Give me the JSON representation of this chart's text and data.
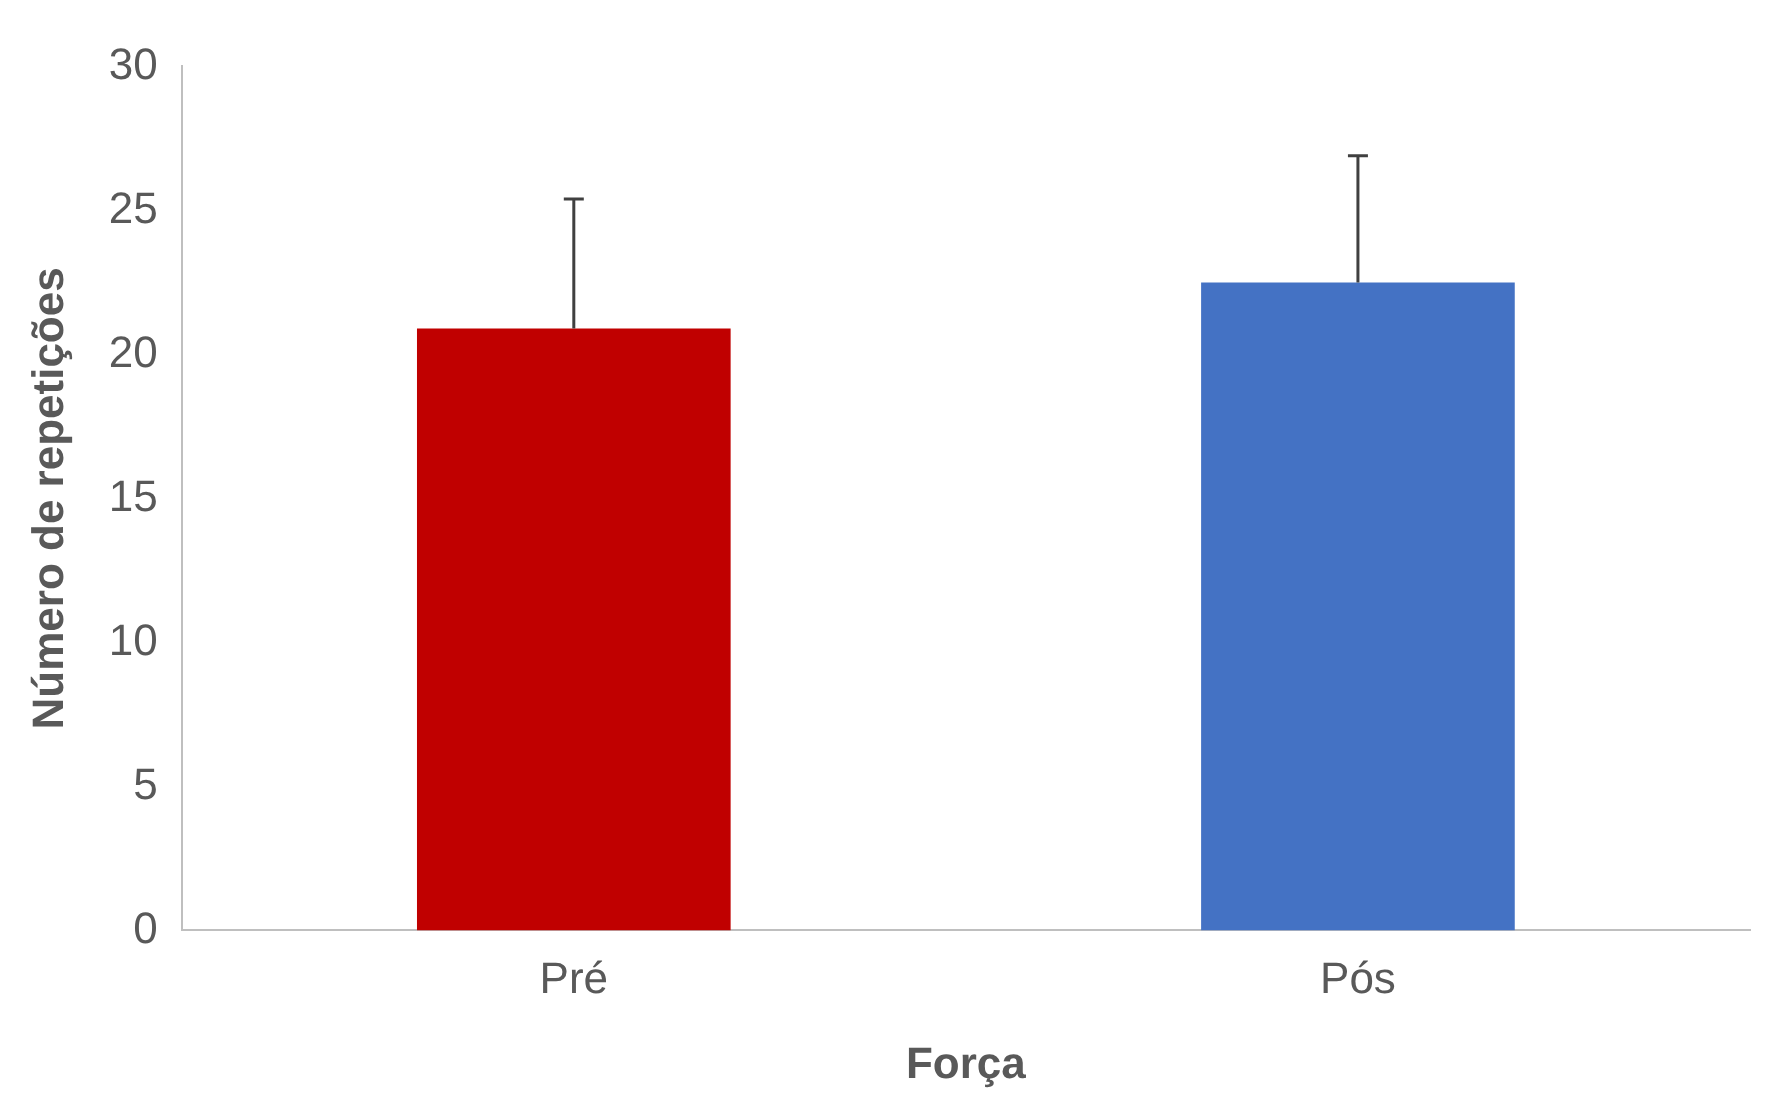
{
  "chart_data": {
    "type": "bar",
    "xlabel": "Força",
    "ylabel": "Número de repetições",
    "categories": [
      "Pré",
      "Pós"
    ],
    "values": [
      20.9,
      22.5
    ],
    "colors": [
      "#c00000",
      "#4472c4"
    ],
    "errors": [
      [
        20.9,
        25.4
      ],
      [
        22.5,
        26.9
      ]
    ],
    "ylim": [
      0,
      30
    ],
    "yticks": [
      0,
      5,
      10,
      15,
      20,
      25,
      30
    ],
    "grid": false,
    "legend": false
  }
}
